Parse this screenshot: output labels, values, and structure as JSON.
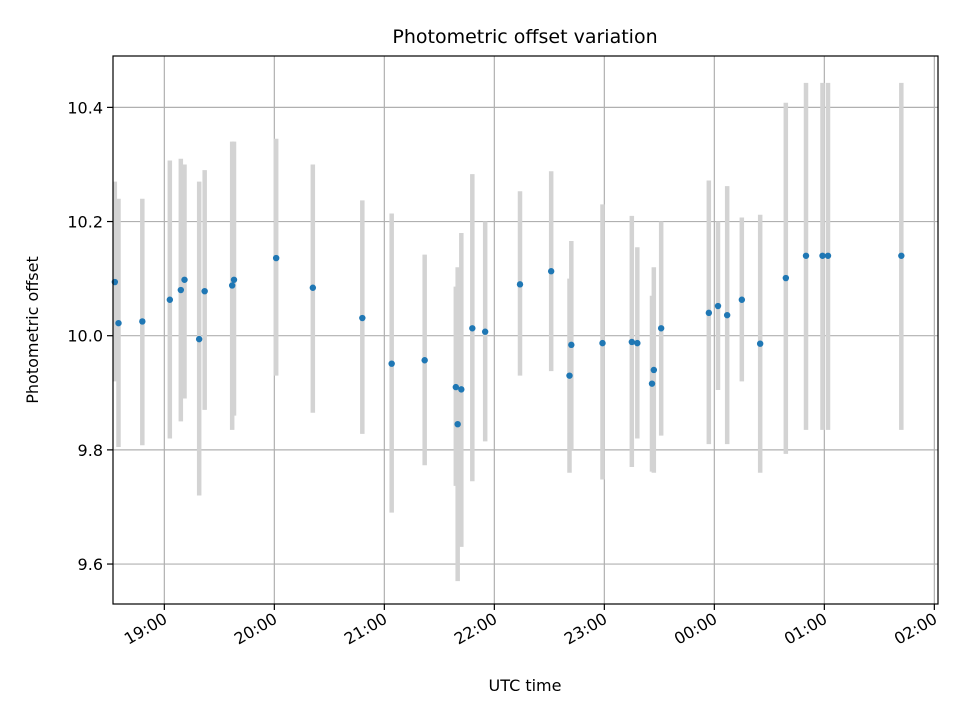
{
  "chart_data": {
    "type": "scatter",
    "title": "Photometric offset variation",
    "xlabel": "UTC time",
    "ylabel": "Photometric offset",
    "x_axis_type": "time",
    "x_tick_labels": [
      "19:00",
      "20:00",
      "21:00",
      "22:00",
      "23:00",
      "00:00",
      "01:00",
      "02:00"
    ],
    "y_tick_labels": [
      "9.6",
      "9.8",
      "10.0",
      "10.2",
      "10.4"
    ],
    "y_ticks": [
      9.6,
      9.8,
      10.0,
      10.2,
      10.4
    ],
    "ylim": [
      9.53,
      10.49
    ],
    "xlim": [
      "18:32",
      "02:02"
    ],
    "grid": true,
    "x_tick_rotation_deg": 30,
    "colors": {
      "marker": "#1f77b4",
      "errorbar": "#d3d3d3",
      "grid": "#b0b0b0"
    },
    "points": [
      {
        "x": "18:33",
        "y": 10.094,
        "ylow": 9.92,
        "yhigh": 10.27
      },
      {
        "x": "18:35",
        "y": 10.022,
        "ylow": 9.805,
        "yhigh": 10.24
      },
      {
        "x": "18:48",
        "y": 10.025,
        "ylow": 9.808,
        "yhigh": 10.24
      },
      {
        "x": "19:03",
        "y": 10.063,
        "ylow": 9.82,
        "yhigh": 10.307
      },
      {
        "x": "19:09",
        "y": 10.08,
        "ylow": 9.85,
        "yhigh": 10.31
      },
      {
        "x": "19:11",
        "y": 10.098,
        "ylow": 9.89,
        "yhigh": 10.3
      },
      {
        "x": "19:19",
        "y": 9.994,
        "ylow": 9.72,
        "yhigh": 10.27
      },
      {
        "x": "19:22",
        "y": 10.078,
        "ylow": 9.87,
        "yhigh": 10.29
      },
      {
        "x": "19:37",
        "y": 10.088,
        "ylow": 9.835,
        "yhigh": 10.34
      },
      {
        "x": "19:38",
        "y": 10.098,
        "ylow": 9.86,
        "yhigh": 10.34
      },
      {
        "x": "20:01",
        "y": 10.136,
        "ylow": 9.93,
        "yhigh": 10.345
      },
      {
        "x": "20:21",
        "y": 10.084,
        "ylow": 9.865,
        "yhigh": 10.3
      },
      {
        "x": "20:48",
        "y": 10.031,
        "ylow": 9.828,
        "yhigh": 10.237
      },
      {
        "x": "21:04",
        "y": 9.951,
        "ylow": 9.69,
        "yhigh": 10.214
      },
      {
        "x": "21:22",
        "y": 9.957,
        "ylow": 9.773,
        "yhigh": 10.142
      },
      {
        "x": "21:39",
        "y": 9.91,
        "ylow": 9.737,
        "yhigh": 10.086
      },
      {
        "x": "21:40",
        "y": 9.845,
        "ylow": 9.57,
        "yhigh": 10.12
      },
      {
        "x": "21:42",
        "y": 9.906,
        "ylow": 9.63,
        "yhigh": 10.18
      },
      {
        "x": "21:48",
        "y": 10.013,
        "ylow": 9.745,
        "yhigh": 10.283
      },
      {
        "x": "21:55",
        "y": 10.007,
        "ylow": 9.815,
        "yhigh": 10.2
      },
      {
        "x": "22:14",
        "y": 10.09,
        "ylow": 9.93,
        "yhigh": 10.253
      },
      {
        "x": "22:31",
        "y": 10.113,
        "ylow": 9.938,
        "yhigh": 10.288
      },
      {
        "x": "22:41",
        "y": 9.93,
        "ylow": 9.76,
        "yhigh": 10.1
      },
      {
        "x": "22:42",
        "y": 9.984,
        "ylow": 9.8,
        "yhigh": 10.166
      },
      {
        "x": "22:59",
        "y": 9.987,
        "ylow": 9.748,
        "yhigh": 10.23
      },
      {
        "x": "23:15",
        "y": 9.989,
        "ylow": 9.77,
        "yhigh": 10.21
      },
      {
        "x": "23:18",
        "y": 9.987,
        "ylow": 9.82,
        "yhigh": 10.155
      },
      {
        "x": "23:26",
        "y": 9.916,
        "ylow": 9.762,
        "yhigh": 10.07
      },
      {
        "x": "23:27",
        "y": 9.94,
        "ylow": 9.76,
        "yhigh": 10.12
      },
      {
        "x": "23:31",
        "y": 10.013,
        "ylow": 9.825,
        "yhigh": 10.2
      },
      {
        "x": "23:57",
        "y": 10.04,
        "ylow": 9.81,
        "yhigh": 10.272
      },
      {
        "x": "00:02",
        "y": 10.052,
        "ylow": 9.905,
        "yhigh": 10.2
      },
      {
        "x": "00:07",
        "y": 10.036,
        "ylow": 9.81,
        "yhigh": 10.262
      },
      {
        "x": "00:15",
        "y": 10.063,
        "ylow": 9.92,
        "yhigh": 10.207
      },
      {
        "x": "00:25",
        "y": 9.986,
        "ylow": 9.76,
        "yhigh": 10.212
      },
      {
        "x": "00:39",
        "y": 10.101,
        "ylow": 9.793,
        "yhigh": 10.408
      },
      {
        "x": "00:50",
        "y": 10.14,
        "ylow": 9.835,
        "yhigh": 10.443
      },
      {
        "x": "00:59",
        "y": 10.14,
        "ylow": 9.835,
        "yhigh": 10.443
      },
      {
        "x": "01:02",
        "y": 10.14,
        "ylow": 9.835,
        "yhigh": 10.443
      },
      {
        "x": "01:42",
        "y": 10.14,
        "ylow": 9.835,
        "yhigh": 10.443
      }
    ]
  }
}
